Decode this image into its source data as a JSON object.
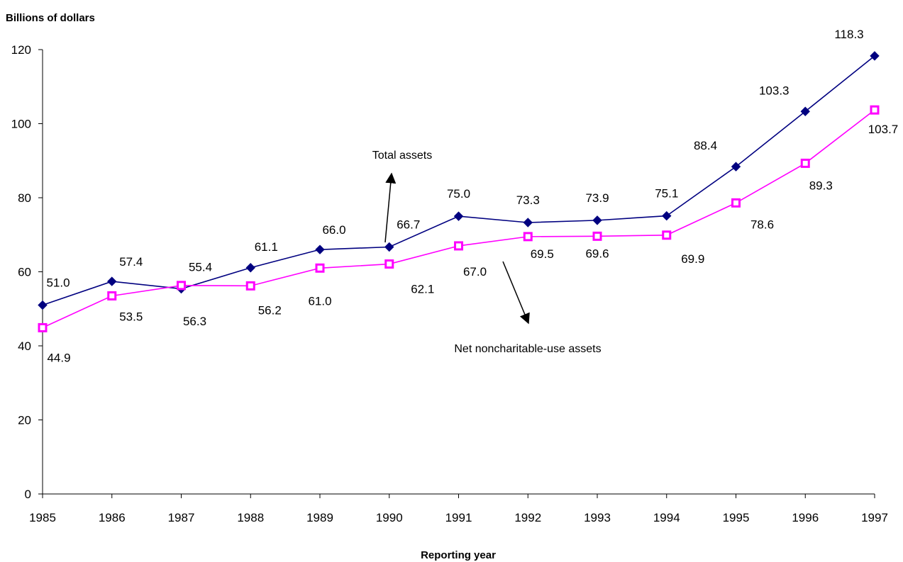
{
  "chart_data": {
    "type": "line",
    "ylabel": "Billions of dollars",
    "xlabel": "Reporting year",
    "ylim": [
      0,
      120
    ],
    "yticks": [
      0,
      20,
      40,
      60,
      80,
      100,
      120
    ],
    "categories": [
      "1985",
      "1986",
      "1987",
      "1988",
      "1989",
      "1990",
      "1991",
      "1992",
      "1993",
      "1994",
      "1995",
      "1996",
      "1997"
    ],
    "grid": false,
    "series": [
      {
        "name": "Total assets",
        "color": "#000080",
        "marker": "diamond",
        "values": [
          51.0,
          57.4,
          55.4,
          61.1,
          66.0,
          66.7,
          75.0,
          73.3,
          73.9,
          75.1,
          88.4,
          103.3,
          118.3
        ],
        "labels": [
          "51.0",
          "57.4",
          "55.4",
          "61.1",
          "66.0",
          "66.7",
          "75.0",
          "73.3",
          "73.9",
          "75.1",
          "88.4",
          "103.3",
          "118.3"
        ]
      },
      {
        "name": "Net noncharitable-use assets",
        "color": "#FF00FF",
        "marker": "square",
        "values": [
          44.9,
          53.5,
          56.3,
          56.2,
          61.0,
          62.1,
          67.0,
          69.5,
          69.6,
          69.9,
          78.6,
          89.3,
          103.7
        ],
        "labels": [
          "44.9",
          "53.5",
          "56.3",
          "56.2",
          "61.0",
          "62.1",
          "67.0",
          "69.5",
          "69.6",
          "69.9",
          "78.6",
          "89.3",
          "103.7"
        ]
      }
    ],
    "annotations": [
      {
        "text": "Total assets",
        "series": "Total assets"
      },
      {
        "text": "Net noncharitable-use assets",
        "series": "Net noncharitable-use assets"
      }
    ]
  }
}
